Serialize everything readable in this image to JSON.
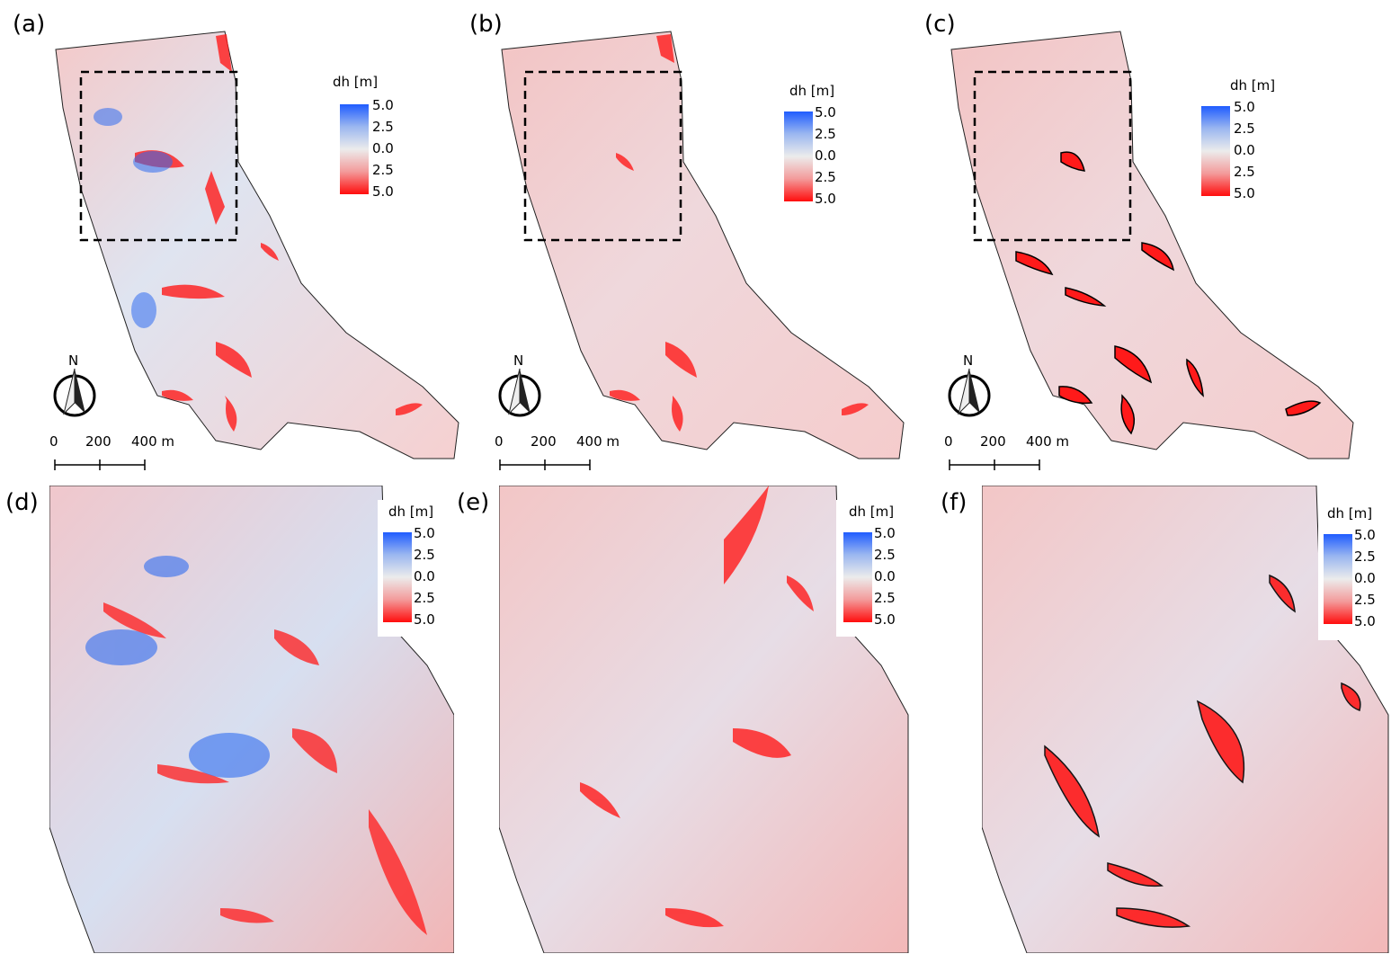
{
  "panels": {
    "a": {
      "label": "(a)"
    },
    "b": {
      "label": "(b)"
    },
    "c": {
      "label": "(c)"
    },
    "d": {
      "label": "(d)"
    },
    "e": {
      "label": "(e)"
    },
    "f": {
      "label": "(f)"
    }
  },
  "legend": {
    "title": "dh [m]",
    "ticks": [
      "5.0",
      "2.5",
      "0.0",
      "2.5",
      "5.0"
    ],
    "colors": {
      "positive": "#1f5cff",
      "zero": "#ececec",
      "negative": "#ff0d0d"
    }
  },
  "north_arrow": {
    "label": "N"
  },
  "scale_bar": {
    "labels": [
      "0",
      "200",
      "400 m"
    ]
  }
}
